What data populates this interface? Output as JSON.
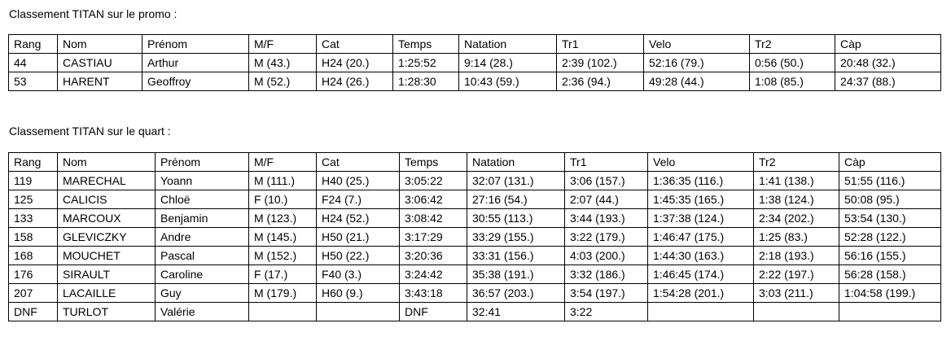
{
  "heading1": "Classement TITAN sur le promo :",
  "table1": {
    "header": [
      "Rang",
      "Nom",
      "Prénom",
      "M/F",
      "Cat",
      "Temps",
      "Natation",
      "Tr1",
      "Velo",
      "Tr2",
      "Càp"
    ],
    "rows": [
      [
        "44",
        "CASTIAU",
        "Arthur",
        "M (43.)",
        "H24 (20.)",
        "1:25:52",
        "9:14 (28.)",
        "2:39 (102.)",
        "52:16 (79.)",
        "0:56 (50.)",
        "20:48 (32.)"
      ],
      [
        "53",
        "HARENT",
        "Geoffroy",
        "M (52.)",
        "H24 (26.)",
        "1:28:30",
        "10:43 (59.)",
        "2:36 (94.)",
        "49:28 (44.)",
        "1:08 (85.)",
        "24:37 (88.)"
      ]
    ]
  },
  "heading2": "Classement TITAN sur le quart :",
  "table2": {
    "header": [
      "Rang",
      "Nom",
      "Prénom",
      "M/F",
      "Cat",
      "Temps",
      "Natation",
      "Tr1",
      "Velo",
      "Tr2",
      "Càp"
    ],
    "rows": [
      [
        "119",
        "MARECHAL",
        "Yoann",
        "M (111.)",
        "H40 (25.)",
        "3:05:22",
        "32:07 (131.)",
        "3:06 (157.)",
        "1:36:35 (116.)",
        "1:41 (138.)",
        "51:55 (116.)"
      ],
      [
        "125",
        "CALICIS",
        "Chloë",
        "F (10.)",
        "F24 (7.)",
        "3:06:42",
        "27:16 (54.)",
        "2:07 (44.)",
        "1:45:35 (165.)",
        "1:38 (124.)",
        "50:08 (95.)"
      ],
      [
        "133",
        "MARCOUX",
        "Benjamin",
        "M (123.)",
        "H24 (52.)",
        "3:08:42",
        "30:55 (113.)",
        "3:44 (193.)",
        "1:37:38 (124.)",
        "2:34 (202.)",
        "53:54 (130.)"
      ],
      [
        "158",
        "GLEVICZKY",
        "Andre",
        "M (145.)",
        "H50 (21.)",
        "3:17:29",
        "33:29 (155.)",
        "3:22 (179.)",
        "1:46:47 (175.)",
        "1:25 (83.)",
        "52:28 (122.)"
      ],
      [
        "168",
        "MOUCHET",
        "Pascal",
        "M (152.)",
        "H50 (22.)",
        "3:20:36",
        "33:31 (156.)",
        "4:03 (200.)",
        "1:44:30 (163.)",
        "2:18 (193.)",
        "56:16 (155.)"
      ],
      [
        "176",
        "SIRAULT",
        "Caroline",
        "F (17.)",
        "F40 (3.)",
        "3:24:42",
        "35:38 (191.)",
        "3:32 (186.)",
        "1:46:45 (174.)",
        "2:22 (197.)",
        "56:28 (158.)"
      ],
      [
        "207",
        "LACAILLE",
        "Guy",
        "M (179.)",
        "H60 (9.)",
        "3:43:18",
        "36:57 (203.)",
        "3:54 (197.)",
        "1:54:28 (201.)",
        "3:03 (211.)",
        "1:04:58 (199.)"
      ],
      [
        "DNF",
        "TURLOT",
        "Valérie",
        null,
        null,
        "DNF",
        "32:41",
        "3:22",
        null,
        null,
        null
      ]
    ]
  }
}
